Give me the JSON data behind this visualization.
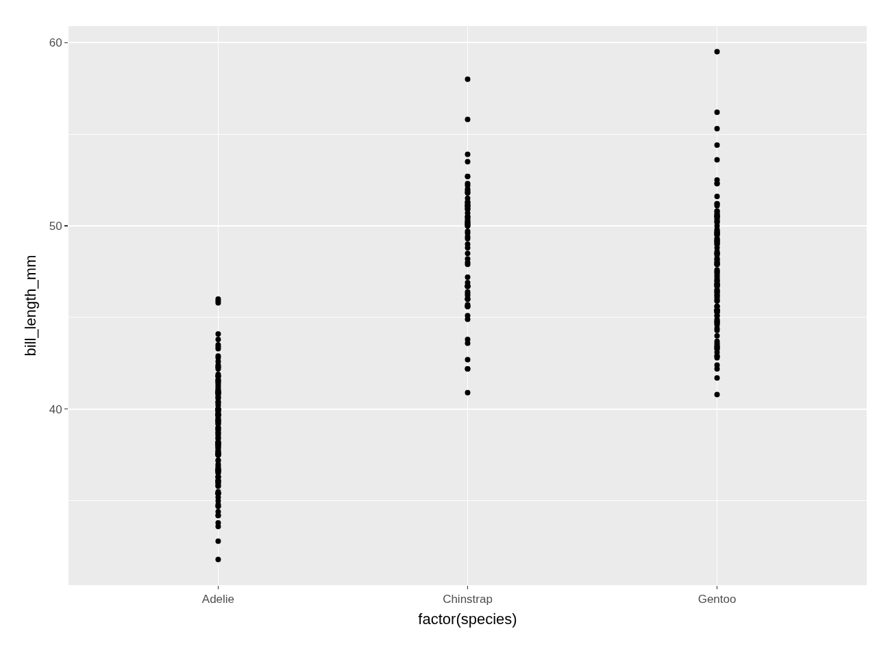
{
  "chart_data": {
    "type": "scatter",
    "xlabel": "factor(species)",
    "ylabel": "bill_length_mm",
    "grid": true,
    "marker": "circle",
    "categories": [
      "Adelie",
      "Chinstrap",
      "Gentoo"
    ],
    "ylim": [
      30.4,
      60.9
    ],
    "yticks": [
      {
        "value": 35,
        "label": null
      },
      40,
      {
        "value": 45,
        "label": null
      },
      50,
      {
        "value": 55,
        "label": null
      },
      60
    ],
    "series": [
      {
        "color": "#000000",
        "x": [
          "Adelie",
          "Adelie",
          "Adelie",
          "Adelie",
          "Adelie",
          "Adelie",
          "Adelie",
          "Adelie",
          "Adelie",
          "Adelie",
          "Adelie",
          "Adelie",
          "Adelie",
          "Adelie",
          "Adelie",
          "Adelie",
          "Adelie",
          "Adelie",
          "Adelie",
          "Adelie",
          "Adelie",
          "Adelie",
          "Adelie",
          "Adelie",
          "Adelie",
          "Adelie",
          "Adelie",
          "Adelie",
          "Adelie",
          "Adelie",
          "Adelie",
          "Adelie",
          "Adelie",
          "Adelie",
          "Adelie",
          "Adelie",
          "Adelie",
          "Adelie",
          "Adelie",
          "Adelie",
          "Adelie",
          "Adelie",
          "Adelie",
          "Adelie",
          "Adelie",
          "Adelie",
          "Adelie",
          "Adelie",
          "Adelie",
          "Adelie",
          "Adelie",
          "Adelie",
          "Adelie",
          "Adelie",
          "Adelie",
          "Adelie",
          "Adelie",
          "Adelie",
          "Adelie",
          "Adelie",
          "Adelie",
          "Adelie",
          "Adelie",
          "Adelie",
          "Adelie",
          "Adelie",
          "Adelie",
          "Adelie",
          "Adelie",
          "Adelie",
          "Adelie",
          "Adelie",
          "Adelie",
          "Adelie",
          "Adelie",
          "Adelie",
          "Adelie",
          "Adelie",
          "Adelie",
          "Adelie",
          "Adelie",
          "Adelie",
          "Adelie",
          "Adelie",
          "Adelie",
          "Adelie",
          "Adelie",
          "Adelie",
          "Adelie",
          "Adelie",
          "Adelie",
          "Adelie",
          "Adelie",
          "Adelie",
          "Adelie",
          "Adelie",
          "Adelie",
          "Adelie",
          "Adelie",
          "Adelie",
          "Adelie",
          "Adelie",
          "Adelie",
          "Adelie",
          "Adelie",
          "Adelie",
          "Adelie",
          "Adelie",
          "Adelie",
          "Adelie",
          "Adelie",
          "Adelie",
          "Adelie",
          "Adelie",
          "Adelie",
          "Adelie",
          "Adelie",
          "Adelie",
          "Adelie",
          "Adelie",
          "Adelie",
          "Adelie",
          "Adelie",
          "Adelie",
          "Adelie",
          "Adelie",
          "Adelie",
          "Adelie",
          "Adelie",
          "Adelie",
          "Adelie",
          "Adelie",
          "Adelie",
          "Adelie",
          "Adelie",
          "Adelie",
          "Adelie",
          "Adelie",
          "Adelie",
          "Adelie",
          "Adelie"
        ],
        "values": [
          45.8,
          45.9,
          46.0,
          44.1,
          43.4,
          43.8,
          43.5,
          43.3,
          42.8,
          42.6,
          42.9,
          42.4,
          42.3,
          42.3,
          41.9,
          42.2,
          41.8,
          41.8,
          41.6,
          41.8,
          41.5,
          41.3,
          41.2,
          41.6,
          41.5,
          41.4,
          41.0,
          40.9,
          40.9,
          41.0,
          40.8,
          40.9,
          40.9,
          41.1,
          40.9,
          40.7,
          40.9,
          40.9,
          40.6,
          40.4,
          40.4,
          40.6,
          40.2,
          40.0,
          40.0,
          39.8,
          40.0,
          39.7,
          39.4,
          39.2,
          39.4,
          39.7,
          39.5,
          39.3,
          39.6,
          39.7,
          39.7,
          39.7,
          40.0,
          40.0,
          40.3,
          39.9,
          39.9,
          39.7,
          39.3,
          39.2,
          39.4,
          39.0,
          38.9,
          39.0,
          38.8,
          38.6,
          38.7,
          38.7,
          38.4,
          38.9,
          38.5,
          38.2,
          38.4,
          38.2,
          38.1,
          38.0,
          37.8,
          37.9,
          38.1,
          38.0,
          37.9,
          38.1,
          38.2,
          38.1,
          37.7,
          37.6,
          37.6,
          37.6,
          37.5,
          37.5,
          37.5,
          37.5,
          37.7,
          37.2,
          37.2,
          36.9,
          37.0,
          36.7,
          36.8,
          36.7,
          36.6,
          36.7,
          36.6,
          36.5,
          36.3,
          36.1,
          36.3,
          36.0,
          36.0,
          36.1,
          36.7,
          36.6,
          36.3,
          36.1,
          35.8,
          35.5,
          35.4,
          35.8,
          35.9,
          35.4,
          35.4,
          35.4,
          35.4,
          35.2,
          35.0,
          34.8,
          34.7,
          34.7,
          34.4,
          34.2,
          34.2,
          33.6,
          33.8,
          32.8,
          31.8
        ]
      },
      {
        "color": "#000000",
        "x": [
          "Chinstrap",
          "Chinstrap",
          "Chinstrap",
          "Chinstrap",
          "Chinstrap",
          "Chinstrap",
          "Chinstrap",
          "Chinstrap",
          "Chinstrap",
          "Chinstrap",
          "Chinstrap",
          "Chinstrap",
          "Chinstrap",
          "Chinstrap",
          "Chinstrap",
          "Chinstrap",
          "Chinstrap",
          "Chinstrap",
          "Chinstrap",
          "Chinstrap",
          "Chinstrap",
          "Chinstrap",
          "Chinstrap",
          "Chinstrap",
          "Chinstrap",
          "Chinstrap",
          "Chinstrap",
          "Chinstrap",
          "Chinstrap",
          "Chinstrap",
          "Chinstrap",
          "Chinstrap",
          "Chinstrap",
          "Chinstrap",
          "Chinstrap",
          "Chinstrap",
          "Chinstrap",
          "Chinstrap",
          "Chinstrap",
          "Chinstrap",
          "Chinstrap",
          "Chinstrap",
          "Chinstrap",
          "Chinstrap",
          "Chinstrap",
          "Chinstrap",
          "Chinstrap",
          "Chinstrap",
          "Chinstrap",
          "Chinstrap",
          "Chinstrap",
          "Chinstrap",
          "Chinstrap",
          "Chinstrap",
          "Chinstrap",
          "Chinstrap",
          "Chinstrap",
          "Chinstrap",
          "Chinstrap",
          "Chinstrap",
          "Chinstrap",
          "Chinstrap",
          "Chinstrap",
          "Chinstrap",
          "Chinstrap",
          "Chinstrap",
          "Chinstrap",
          "Chinstrap"
        ],
        "values": [
          58.0,
          55.8,
          53.9,
          53.5,
          52.7,
          52.7,
          52.2,
          52.3,
          52.0,
          51.8,
          51.8,
          51.5,
          51.3,
          51.3,
          51.9,
          51.2,
          51.1,
          51.1,
          51.1,
          50.9,
          51.0,
          50.9,
          50.7,
          50.5,
          50.4,
          50.5,
          50.3,
          50.2,
          50.2,
          50.1,
          50.0,
          50.1,
          50.0,
          49.7,
          49.6,
          49.4,
          49.3,
          49.0,
          48.8,
          48.5,
          48.2,
          48.0,
          47.9,
          47.2,
          46.7,
          46.7,
          46.7,
          46.7,
          46.4,
          46.9,
          46.7,
          46.3,
          46.2,
          46.0,
          46.0,
          46.0,
          45.6,
          45.6,
          45.6,
          45.7,
          45.1,
          44.9,
          43.8,
          43.6,
          42.7,
          42.2,
          42.2,
          40.9
        ]
      },
      {
        "color": "#000000",
        "x": [
          "Gentoo",
          "Gentoo",
          "Gentoo",
          "Gentoo",
          "Gentoo",
          "Gentoo",
          "Gentoo",
          "Gentoo",
          "Gentoo",
          "Gentoo",
          "Gentoo",
          "Gentoo",
          "Gentoo",
          "Gentoo",
          "Gentoo",
          "Gentoo",
          "Gentoo",
          "Gentoo",
          "Gentoo",
          "Gentoo",
          "Gentoo",
          "Gentoo",
          "Gentoo",
          "Gentoo",
          "Gentoo",
          "Gentoo",
          "Gentoo",
          "Gentoo",
          "Gentoo",
          "Gentoo",
          "Gentoo",
          "Gentoo",
          "Gentoo",
          "Gentoo",
          "Gentoo",
          "Gentoo",
          "Gentoo",
          "Gentoo",
          "Gentoo",
          "Gentoo",
          "Gentoo",
          "Gentoo",
          "Gentoo",
          "Gentoo",
          "Gentoo",
          "Gentoo",
          "Gentoo",
          "Gentoo",
          "Gentoo",
          "Gentoo",
          "Gentoo",
          "Gentoo",
          "Gentoo",
          "Gentoo",
          "Gentoo",
          "Gentoo",
          "Gentoo",
          "Gentoo",
          "Gentoo",
          "Gentoo",
          "Gentoo",
          "Gentoo",
          "Gentoo",
          "Gentoo",
          "Gentoo",
          "Gentoo",
          "Gentoo",
          "Gentoo",
          "Gentoo",
          "Gentoo",
          "Gentoo",
          "Gentoo",
          "Gentoo",
          "Gentoo",
          "Gentoo",
          "Gentoo",
          "Gentoo",
          "Gentoo",
          "Gentoo",
          "Gentoo",
          "Gentoo",
          "Gentoo",
          "Gentoo",
          "Gentoo",
          "Gentoo",
          "Gentoo",
          "Gentoo",
          "Gentoo",
          "Gentoo",
          "Gentoo",
          "Gentoo",
          "Gentoo",
          "Gentoo",
          "Gentoo",
          "Gentoo",
          "Gentoo",
          "Gentoo",
          "Gentoo",
          "Gentoo",
          "Gentoo",
          "Gentoo",
          "Gentoo",
          "Gentoo",
          "Gentoo",
          "Gentoo",
          "Gentoo",
          "Gentoo",
          "Gentoo",
          "Gentoo",
          "Gentoo",
          "Gentoo",
          "Gentoo",
          "Gentoo",
          "Gentoo",
          "Gentoo",
          "Gentoo",
          "Gentoo",
          "Gentoo",
          "Gentoo",
          "Gentoo"
        ],
        "values": [
          59.5,
          56.2,
          55.3,
          54.4,
          53.6,
          52.5,
          52.3,
          52.3,
          51.1,
          51.2,
          51.6,
          51.2,
          50.8,
          50.8,
          50.7,
          50.6,
          50.4,
          50.6,
          50.5,
          50.5,
          50.5,
          50.2,
          50.2,
          50.3,
          50.0,
          49.6,
          49.7,
          49.6,
          49.7,
          49.5,
          49.5,
          49.6,
          49.8,
          49.3,
          49.2,
          49.2,
          49.3,
          49.1,
          49.1,
          49.0,
          49.0,
          48.8,
          48.5,
          48.2,
          48.5,
          48.5,
          48.2,
          48.4,
          48.6,
          48.1,
          48.0,
          48.0,
          47.9,
          47.9,
          47.9,
          47.6,
          47.5,
          47.3,
          47.4,
          47.2,
          47.5,
          47.1,
          47.0,
          47.0,
          46.8,
          46.8,
          46.8,
          46.9,
          46.7,
          46.7,
          46.8,
          46.5,
          46.5,
          46.4,
          46.4,
          46.3,
          46.2,
          46.2,
          46.1,
          46.0,
          45.9,
          45.9,
          45.6,
          45.4,
          45.4,
          45.4,
          45.4,
          45.6,
          45.6,
          45.4,
          45.4,
          45.3,
          45.3,
          45.3,
          45.1,
          45.1,
          44.9,
          44.8,
          44.7,
          44.8,
          44.7,
          44.6,
          44.4,
          44.3,
          44.0,
          43.7,
          43.6,
          43.5,
          43.4,
          43.3,
          43.3,
          43.4,
          43.1,
          42.9,
          42.9,
          42.8,
          42.4,
          42.2,
          41.7,
          40.8
        ]
      }
    ]
  }
}
